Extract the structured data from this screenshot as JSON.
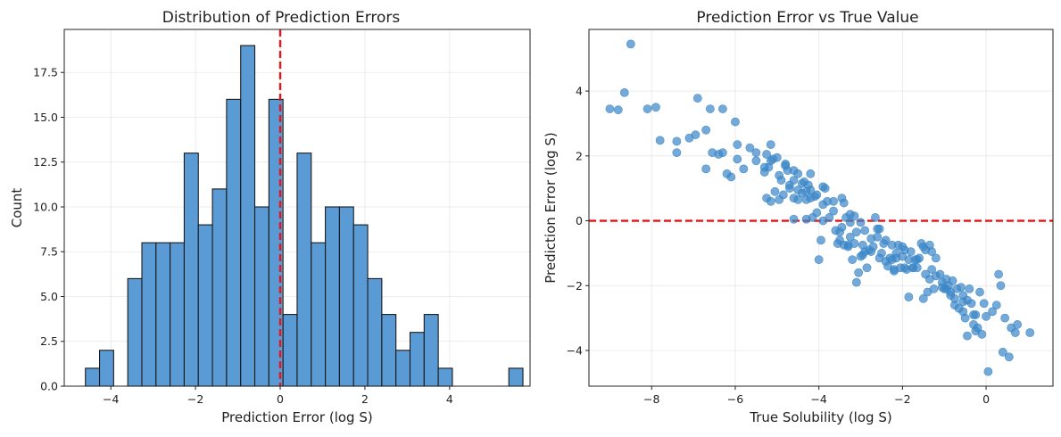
{
  "colors": {
    "bar_fill": "#5b9bd5",
    "bar_edge": "#1a1a1a",
    "point": "#3a86c8",
    "refline": "#e8141a"
  },
  "chart_data": [
    {
      "type": "bar",
      "title": "Distribution of Prediction Errors",
      "xlabel": "Prediction Error (log S)",
      "ylabel": "Count",
      "xlim": [
        -5.1,
        5.9
      ],
      "ylim": [
        0,
        19.9
      ],
      "grid": true,
      "xticks": [
        -4,
        -2,
        0,
        2,
        4
      ],
      "yticks": [
        0.0,
        2.5,
        5.0,
        7.5,
        10.0,
        12.5,
        15.0,
        17.5
      ],
      "bin_start": -4.6,
      "bin_width": 0.3333,
      "values": [
        1,
        2,
        0,
        6,
        8,
        8,
        8,
        13,
        9,
        11,
        16,
        19,
        10,
        16,
        4,
        13,
        8,
        10,
        10,
        9,
        6,
        4,
        2,
        3,
        4,
        1,
        0,
        0,
        0,
        0,
        1
      ],
      "reference_line": {
        "orientation": "vertical",
        "x": 0,
        "style": "dashed"
      }
    },
    {
      "type": "scatter",
      "title": "Prediction Error vs True Value",
      "xlabel": "True Solubility (log S)",
      "ylabel": "Prediction Error (log S)",
      "xlim": [
        -9.5,
        1.6
      ],
      "ylim": [
        -5.1,
        5.9
      ],
      "grid": true,
      "xticks": [
        -8,
        -6,
        -4,
        -2,
        0
      ],
      "yticks": [
        -4,
        -2,
        0,
        2,
        4
      ],
      "reference_line": {
        "orientation": "horizontal",
        "y": 0,
        "style": "dashed"
      },
      "points": [
        [
          -9.0,
          3.45
        ],
        [
          -8.8,
          3.42
        ],
        [
          -8.65,
          3.95
        ],
        [
          -8.5,
          5.45
        ],
        [
          -8.1,
          3.45
        ],
        [
          -7.9,
          3.5
        ],
        [
          -7.8,
          2.48
        ],
        [
          -7.4,
          2.45
        ],
        [
          -7.4,
          2.1
        ],
        [
          -7.1,
          2.55
        ],
        [
          -6.9,
          3.78
        ],
        [
          -6.95,
          2.65
        ],
        [
          -6.7,
          2.8
        ],
        [
          -6.7,
          1.6
        ],
        [
          -6.6,
          3.45
        ],
        [
          -6.55,
          2.1
        ],
        [
          -6.3,
          3.45
        ],
        [
          -6.3,
          2.1
        ],
        [
          -6.2,
          1.45
        ],
        [
          -6.1,
          1.35
        ],
        [
          -6.0,
          3.05
        ],
        [
          -5.95,
          2.35
        ],
        [
          -5.95,
          1.9
        ],
        [
          -5.65,
          2.25
        ],
        [
          -5.5,
          2.1
        ],
        [
          -5.3,
          1.5
        ],
        [
          -5.25,
          2.05
        ],
        [
          -5.2,
          1.65
        ],
        [
          -5.15,
          2.35
        ],
        [
          -5.15,
          1.85
        ],
        [
          -5.25,
          0.7
        ],
        [
          -5.15,
          0.6
        ],
        [
          -5.0,
          1.95
        ],
        [
          -4.95,
          1.4
        ],
        [
          -4.9,
          1.25
        ],
        [
          -4.85,
          0.8
        ],
        [
          -4.8,
          1.75
        ],
        [
          -4.75,
          1.55
        ],
        [
          -4.7,
          1.1
        ],
        [
          -4.6,
          1.55
        ],
        [
          -4.6,
          0.7
        ],
        [
          -4.5,
          1.45
        ],
        [
          -4.5,
          0.65
        ],
        [
          -4.4,
          0.85
        ],
        [
          -4.35,
          1.2
        ],
        [
          -4.3,
          0.65
        ],
        [
          -4.25,
          1.1
        ],
        [
          -4.2,
          0.7
        ],
        [
          -4.2,
          1.45
        ],
        [
          -4.15,
          0.1
        ],
        [
          -4.05,
          0.8
        ],
        [
          -4.0,
          -1.2
        ],
        [
          -3.95,
          -0.6
        ],
        [
          -3.9,
          0.5
        ],
        [
          -3.85,
          1.0
        ],
        [
          -3.8,
          0.6
        ],
        [
          -3.75,
          0.1
        ],
        [
          -3.6,
          -0.3
        ],
        [
          -3.55,
          -0.7
        ],
        [
          -3.5,
          -0.6
        ],
        [
          -3.45,
          0.7
        ],
        [
          -3.4,
          -0.75
        ],
        [
          -3.35,
          0.1
        ],
        [
          -3.3,
          -0.8
        ],
        [
          -3.25,
          0.2
        ],
        [
          -3.2,
          -1.2
        ],
        [
          -3.15,
          -0.7
        ],
        [
          -3.1,
          -1.9
        ],
        [
          -3.05,
          -1.6
        ],
        [
          -3.0,
          -1.1
        ],
        [
          -2.95,
          -0.75
        ],
        [
          -2.9,
          -0.3
        ],
        [
          -2.85,
          -1.45
        ],
        [
          -2.8,
          -0.9
        ],
        [
          -2.75,
          -0.95
        ],
        [
          -2.7,
          -0.8
        ],
        [
          -2.65,
          0.1
        ],
        [
          -2.6,
          -0.5
        ],
        [
          -2.55,
          -0.25
        ],
        [
          -2.5,
          -1.0
        ],
        [
          -2.45,
          -0.7
        ],
        [
          -2.4,
          -1.25
        ],
        [
          -2.35,
          -1.4
        ],
        [
          -2.3,
          -1.15
        ],
        [
          -2.25,
          -0.75
        ],
        [
          -2.2,
          -1.55
        ],
        [
          -2.15,
          -1.15
        ],
        [
          -2.1,
          -0.75
        ],
        [
          -2.05,
          -1.45
        ],
        [
          -2.0,
          -1.1
        ],
        [
          -1.95,
          -0.9
        ],
        [
          -1.9,
          -1.5
        ],
        [
          -1.85,
          -1.2
        ],
        [
          -1.8,
          -0.95
        ],
        [
          -1.75,
          -1.45
        ],
        [
          -1.7,
          -1.2
        ],
        [
          -1.65,
          -1.45
        ],
        [
          -1.55,
          -0.7
        ],
        [
          -1.5,
          -0.8
        ],
        [
          -1.45,
          -0.9
        ],
        [
          -1.4,
          -2.2
        ],
        [
          -1.35,
          -0.75
        ],
        [
          -1.3,
          -0.95
        ],
        [
          -1.25,
          -2.1
        ],
        [
          -1.2,
          -1.15
        ],
        [
          -1.1,
          -1.65
        ],
        [
          -1.05,
          -2.05
        ],
        [
          -1.0,
          -2.1
        ],
        [
          -0.95,
          -1.8
        ],
        [
          -0.9,
          -2.0
        ],
        [
          -0.85,
          -2.3
        ],
        [
          -0.8,
          -1.85
        ],
        [
          -0.75,
          -2.6
        ],
        [
          -0.7,
          -2.1
        ],
        [
          -0.65,
          -2.7
        ],
        [
          -0.6,
          -2.05
        ],
        [
          -0.55,
          -2.8
        ],
        [
          -0.5,
          -3.0
        ],
        [
          -0.45,
          -2.45
        ],
        [
          -0.4,
          -2.1
        ],
        [
          -0.35,
          -2.55
        ],
        [
          -0.3,
          -3.2
        ],
        [
          -0.25,
          -2.9
        ],
        [
          -0.2,
          -3.3
        ],
        [
          -0.15,
          -2.2
        ],
        [
          -0.1,
          -3.5
        ],
        [
          -0.05,
          -2.55
        ],
        [
          0.0,
          -2.95
        ],
        [
          0.05,
          -4.65
        ],
        [
          0.15,
          -2.8
        ],
        [
          0.25,
          -2.6
        ],
        [
          0.3,
          -1.65
        ],
        [
          0.35,
          -2.0
        ],
        [
          0.4,
          -4.05
        ],
        [
          0.45,
          -3.0
        ],
        [
          0.55,
          -4.2
        ],
        [
          0.6,
          -3.3
        ],
        [
          0.7,
          -3.45
        ],
        [
          0.75,
          -3.2
        ],
        [
          1.05,
          -3.45
        ],
        [
          -2.6,
          -0.25
        ],
        [
          -2.95,
          -1.05
        ],
        [
          -3.25,
          -0.5
        ],
        [
          -3.45,
          -0.2
        ],
        [
          -2.0,
          -0.8
        ],
        [
          -1.6,
          -1.15
        ],
        [
          -1.3,
          -1.5
        ],
        [
          -0.95,
          -2.1
        ],
        [
          -0.55,
          -2.3
        ],
        [
          -0.25,
          -3.4
        ],
        [
          -4.05,
          0.25
        ],
        [
          -3.65,
          0.3
        ],
        [
          -3.15,
          0.15
        ],
        [
          -2.75,
          -0.55
        ],
        [
          -2.15,
          -1.0
        ],
        [
          -1.75,
          -1.45
        ],
        [
          -1.45,
          -1.65
        ],
        [
          -1.2,
          -1.7
        ],
        [
          -0.85,
          -2.2
        ],
        [
          -0.45,
          -3.55
        ],
        [
          -4.6,
          0.05
        ],
        [
          -4.3,
          0.05
        ],
        [
          -3.9,
          0.0
        ],
        [
          -3.5,
          -0.35
        ],
        [
          -3.0,
          -0.05
        ],
        [
          -2.4,
          -0.6
        ],
        [
          -2.2,
          -1.5
        ],
        [
          -1.85,
          -2.35
        ],
        [
          -1.5,
          -2.4
        ],
        [
          -0.3,
          -2.9
        ],
        [
          -4.95,
          0.65
        ],
        [
          -5.05,
          0.9
        ],
        [
          -4.7,
          1.0
        ],
        [
          -4.5,
          0.95
        ],
        [
          -4.2,
          0.95
        ],
        [
          -3.9,
          1.05
        ],
        [
          -3.65,
          0.6
        ],
        [
          -3.4,
          0.55
        ],
        [
          -3.25,
          -0.05
        ],
        [
          -3.1,
          -0.35
        ],
        [
          -6.4,
          2.05
        ],
        [
          -5.8,
          1.6
        ],
        [
          -5.5,
          1.85
        ],
        [
          -5.3,
          1.65
        ],
        [
          -5.1,
          1.9
        ],
        [
          -4.8,
          1.7
        ],
        [
          -4.6,
          1.25
        ],
        [
          -4.4,
          1.15
        ],
        [
          -4.3,
          0.9
        ],
        [
          -4.1,
          0.75
        ],
        [
          -3.3,
          -0.75
        ],
        [
          -2.9,
          -0.95
        ],
        [
          -2.55,
          -1.15
        ],
        [
          -2.25,
          -1.2
        ],
        [
          -1.95,
          -1.45
        ],
        [
          -1.65,
          -1.2
        ],
        [
          -1.35,
          -1.8
        ],
        [
          -1.05,
          -1.9
        ],
        [
          -0.75,
          -2.4
        ],
        [
          -0.55,
          -2.5
        ]
      ]
    }
  ]
}
